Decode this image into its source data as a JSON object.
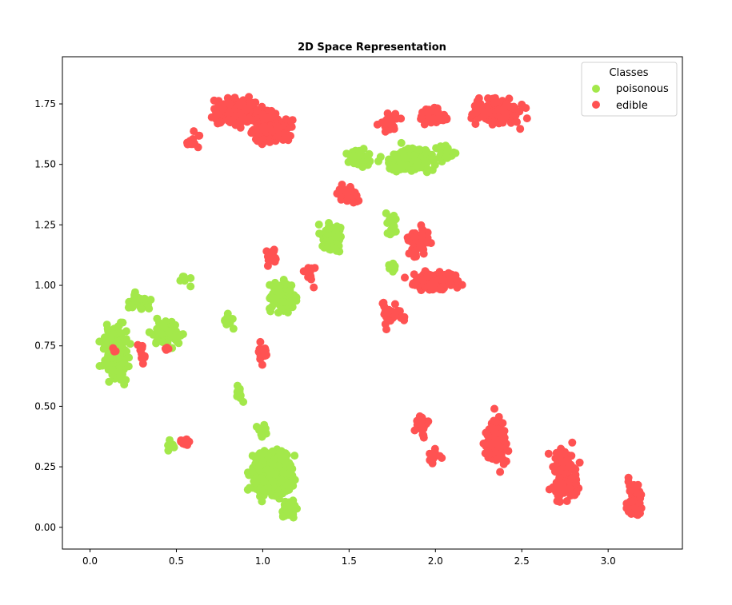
{
  "chart_data": {
    "type": "scatter",
    "title": "2D Space Representation",
    "xlabel": "",
    "ylabel": "",
    "xlim": [
      -0.16,
      3.43
    ],
    "ylim": [
      -0.09,
      1.945
    ],
    "xticks": [
      0.0,
      0.5,
      1.0,
      1.5,
      2.0,
      2.5,
      3.0
    ],
    "xtick_labels": [
      "0.0",
      "0.5",
      "1.0",
      "1.5",
      "2.0",
      "2.5",
      "3.0"
    ],
    "yticks": [
      0.0,
      0.25,
      0.5,
      0.75,
      1.0,
      1.25,
      1.5,
      1.75
    ],
    "ytick_labels": [
      "0.00",
      "0.25",
      "0.50",
      "0.75",
      "1.00",
      "1.25",
      "1.50",
      "1.75"
    ],
    "grid": false,
    "legend": {
      "title": "Classes",
      "placement": "top-right"
    },
    "series": [
      {
        "name": "poisonous",
        "color": "#a3e84a",
        "clusters": [
          {
            "cx": 0.15,
            "cy": 0.72,
            "rx": 0.12,
            "ry": 0.17,
            "n": 170
          },
          {
            "cx": 0.45,
            "cy": 0.8,
            "rx": 0.14,
            "ry": 0.08,
            "n": 60
          },
          {
            "cx": 0.28,
            "cy": 0.93,
            "rx": 0.12,
            "ry": 0.06,
            "n": 30
          },
          {
            "cx": 0.55,
            "cy": 1.02,
            "rx": 0.05,
            "ry": 0.04,
            "n": 6
          },
          {
            "cx": 0.8,
            "cy": 0.85,
            "rx": 0.08,
            "ry": 0.05,
            "n": 12
          },
          {
            "cx": 1.05,
            "cy": 0.22,
            "rx": 0.18,
            "ry": 0.16,
            "n": 380
          },
          {
            "cx": 1.15,
            "cy": 0.08,
            "rx": 0.06,
            "ry": 0.06,
            "n": 60
          },
          {
            "cx": 0.85,
            "cy": 0.55,
            "rx": 0.1,
            "ry": 0.04,
            "n": 12
          },
          {
            "cx": 1.0,
            "cy": 0.4,
            "rx": 0.06,
            "ry": 0.04,
            "n": 15
          },
          {
            "cx": 0.48,
            "cy": 0.34,
            "rx": 0.05,
            "ry": 0.03,
            "n": 6
          },
          {
            "cx": 1.12,
            "cy": 0.95,
            "rx": 0.12,
            "ry": 0.1,
            "n": 90
          },
          {
            "cx": 1.4,
            "cy": 1.2,
            "rx": 0.1,
            "ry": 0.1,
            "n": 60
          },
          {
            "cx": 1.55,
            "cy": 1.52,
            "rx": 0.12,
            "ry": 0.06,
            "n": 60
          },
          {
            "cx": 1.85,
            "cy": 1.52,
            "rx": 0.22,
            "ry": 0.08,
            "n": 130
          },
          {
            "cx": 2.05,
            "cy": 1.55,
            "rx": 0.1,
            "ry": 0.06,
            "n": 30
          },
          {
            "cx": 1.75,
            "cy": 1.25,
            "rx": 0.06,
            "ry": 0.08,
            "n": 20
          },
          {
            "cx": 1.75,
            "cy": 1.08,
            "rx": 0.05,
            "ry": 0.04,
            "n": 8
          }
        ]
      },
      {
        "name": "edible",
        "color": "#ff5252",
        "clusters": [
          {
            "cx": 0.85,
            "cy": 1.72,
            "rx": 0.22,
            "ry": 0.09,
            "n": 200
          },
          {
            "cx": 1.05,
            "cy": 1.65,
            "rx": 0.2,
            "ry": 0.1,
            "n": 160
          },
          {
            "cx": 0.6,
            "cy": 1.6,
            "rx": 0.06,
            "ry": 0.05,
            "n": 15
          },
          {
            "cx": 2.35,
            "cy": 1.72,
            "rx": 0.2,
            "ry": 0.08,
            "n": 170
          },
          {
            "cx": 2.0,
            "cy": 1.7,
            "rx": 0.12,
            "ry": 0.06,
            "n": 40
          },
          {
            "cx": 1.72,
            "cy": 1.67,
            "rx": 0.1,
            "ry": 0.05,
            "n": 25
          },
          {
            "cx": 2.0,
            "cy": 1.02,
            "rx": 0.22,
            "ry": 0.07,
            "n": 140
          },
          {
            "cx": 1.9,
            "cy": 1.18,
            "rx": 0.1,
            "ry": 0.1,
            "n": 50
          },
          {
            "cx": 1.75,
            "cy": 0.88,
            "rx": 0.1,
            "ry": 0.08,
            "n": 25
          },
          {
            "cx": 1.5,
            "cy": 1.38,
            "rx": 0.12,
            "ry": 0.07,
            "n": 40
          },
          {
            "cx": 1.05,
            "cy": 1.12,
            "rx": 0.06,
            "ry": 0.06,
            "n": 20
          },
          {
            "cx": 1.0,
            "cy": 0.72,
            "rx": 0.05,
            "ry": 0.08,
            "n": 20
          },
          {
            "cx": 1.28,
            "cy": 1.05,
            "rx": 0.06,
            "ry": 0.07,
            "n": 12
          },
          {
            "cx": 0.55,
            "cy": 0.35,
            "rx": 0.05,
            "ry": 0.02,
            "n": 15
          },
          {
            "cx": 0.3,
            "cy": 0.72,
            "rx": 0.04,
            "ry": 0.08,
            "n": 10
          },
          {
            "cx": 0.45,
            "cy": 0.74,
            "rx": 0.03,
            "ry": 0.01,
            "n": 5
          },
          {
            "cx": 0.14,
            "cy": 0.73,
            "rx": 0.02,
            "ry": 0.03,
            "n": 4
          },
          {
            "cx": 1.92,
            "cy": 0.42,
            "rx": 0.06,
            "ry": 0.07,
            "n": 25
          },
          {
            "cx": 2.0,
            "cy": 0.3,
            "rx": 0.05,
            "ry": 0.05,
            "n": 15
          },
          {
            "cx": 2.35,
            "cy": 0.35,
            "rx": 0.1,
            "ry": 0.17,
            "n": 120
          },
          {
            "cx": 2.75,
            "cy": 0.22,
            "rx": 0.12,
            "ry": 0.17,
            "n": 110
          },
          {
            "cx": 3.15,
            "cy": 0.12,
            "rx": 0.07,
            "ry": 0.12,
            "n": 50
          }
        ]
      }
    ]
  }
}
